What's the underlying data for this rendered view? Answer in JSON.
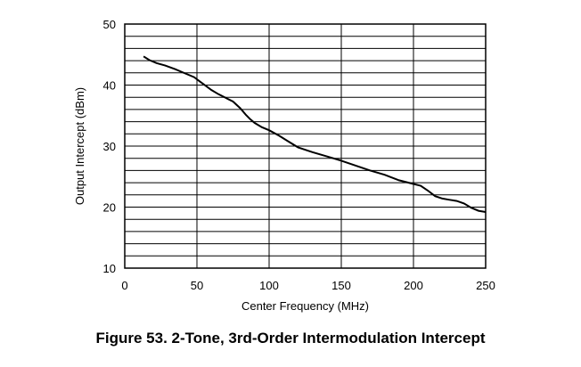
{
  "chart_data": {
    "type": "line",
    "xlabel": "Center Frequency (MHz)",
    "ylabel": "Output Intercept (dBm)",
    "xlim": [
      0,
      250
    ],
    "ylim": [
      10,
      50
    ],
    "xticks": [
      0,
      50,
      100,
      150,
      200,
      250
    ],
    "yticks": [
      10,
      20,
      30,
      40,
      50
    ],
    "x_grid_step": 50,
    "y_grid_step": 2,
    "grid": true,
    "series": [
      {
        "x": [
          13,
          17,
          22,
          28,
          35,
          42,
          48,
          52,
          56,
          60,
          65,
          70,
          75,
          80,
          84,
          87,
          90,
          95,
          100,
          107,
          113,
          120,
          130,
          140,
          150,
          160,
          170,
          180,
          190,
          200,
          205,
          210,
          215,
          220,
          225,
          230,
          235,
          240,
          245,
          250
        ],
        "y": [
          44.7,
          44.1,
          43.6,
          43.2,
          42.6,
          41.9,
          41.3,
          40.6,
          39.9,
          39.2,
          38.5,
          37.9,
          37.3,
          36.2,
          35.1,
          34.4,
          33.8,
          33.1,
          32.6,
          31.7,
          30.8,
          29.8,
          29.0,
          28.3,
          27.6,
          26.8,
          26.0,
          25.3,
          24.4,
          23.8,
          23.5,
          22.7,
          21.8,
          21.4,
          21.2,
          21.0,
          20.6,
          19.9,
          19.4,
          19.2
        ],
        "color": "#000000"
      }
    ]
  },
  "figure_caption": "Figure 53.  2-Tone, 3rd-Order Intermodulation Intercept"
}
